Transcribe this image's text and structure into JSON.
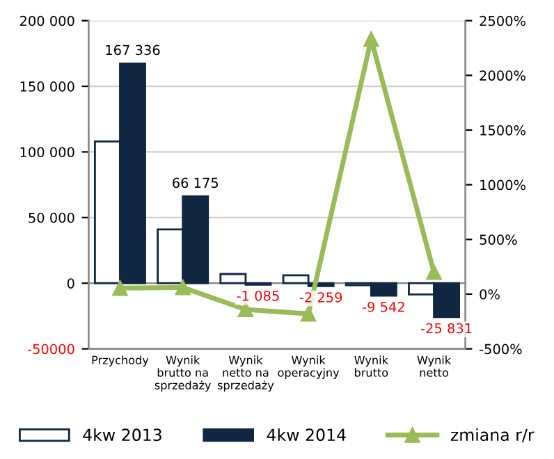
{
  "chart_data": {
    "type": "bar",
    "categories": [
      "Przychody",
      "Wynik\nbrutto na\nsprzedaży",
      "Wynik\nnetto na\nsprzedaży",
      "Wynik\noperacyjny",
      "Wynik\nbrutto",
      "Wynik\nnetto"
    ],
    "series": [
      {
        "name": "4kw 2013",
        "color": "#ffffff",
        "values": [
          108000,
          41000,
          7000,
          6000,
          -1500,
          -8500
        ]
      },
      {
        "name": "4kw 2014",
        "color": "#112640",
        "values": [
          167336,
          66175,
          -1085,
          -2259,
          -9542,
          -25831
        ],
        "value_labels": [
          "167 336",
          "66 175",
          "-1 085",
          "-2 259",
          "-9 542",
          "-25 831"
        ]
      },
      {
        "name": "zmiana r/r",
        "type": "line",
        "axis": "y2",
        "color": "#9bbb59",
        "marker": "triangle",
        "values": [
          55,
          61,
          -140,
          -180,
          2330,
          200
        ]
      }
    ],
    "ylim": [
      -50000,
      200000
    ],
    "yticks": [
      {
        "value": -50000,
        "label": "-50000"
      },
      {
        "value": 0,
        "label": "0"
      },
      {
        "value": 50000,
        "label": "50 000"
      },
      {
        "value": 100000,
        "label": "100 000"
      },
      {
        "value": 150000,
        "label": "150 000"
      },
      {
        "value": 200000,
        "label": "200 000"
      }
    ],
    "y2lim": [
      -500,
      2500
    ],
    "y2ticks": [
      {
        "value": -500,
        "label": "-500%"
      },
      {
        "value": 0,
        "label": "0%"
      },
      {
        "value": 500,
        "label": "500%"
      },
      {
        "value": 1000,
        "label": "1000%"
      },
      {
        "value": 1500,
        "label": "1500%"
      },
      {
        "value": 2000,
        "label": "2000%"
      },
      {
        "value": 2500,
        "label": "2500%"
      }
    ],
    "grid": "y",
    "legend": "bottom"
  }
}
